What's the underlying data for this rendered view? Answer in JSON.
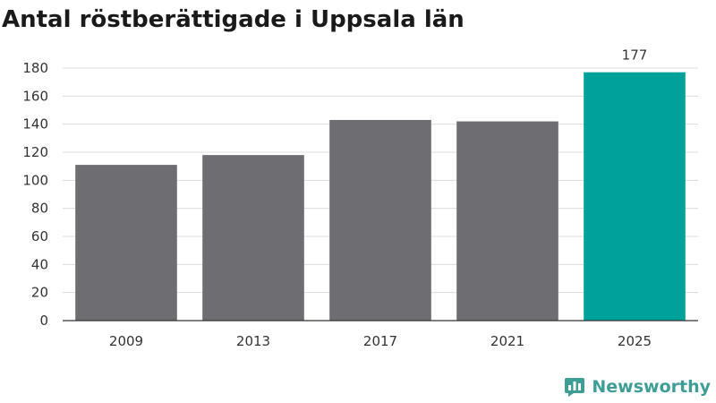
{
  "title": "Antal röstberättigade i Uppsala län",
  "brand": {
    "name": "Newsworthy",
    "icon": "newsworthy-logo-icon",
    "color": "#3e9e96"
  },
  "chart_data": {
    "type": "bar",
    "categories": [
      "2009",
      "2013",
      "2017",
      "2021",
      "2025"
    ],
    "values": [
      111,
      118,
      143,
      142,
      177
    ],
    "value_labels": [
      "",
      "",
      "",
      "",
      "177"
    ],
    "bar_colors": [
      "#6e6d72",
      "#6e6d72",
      "#6e6d72",
      "#6e6d72",
      "#00a19a"
    ],
    "yticks": [
      0,
      20,
      40,
      60,
      80,
      100,
      120,
      140,
      160,
      180
    ],
    "ylim": [
      0,
      180
    ],
    "grid": true,
    "xlabel": "",
    "ylabel": ""
  }
}
